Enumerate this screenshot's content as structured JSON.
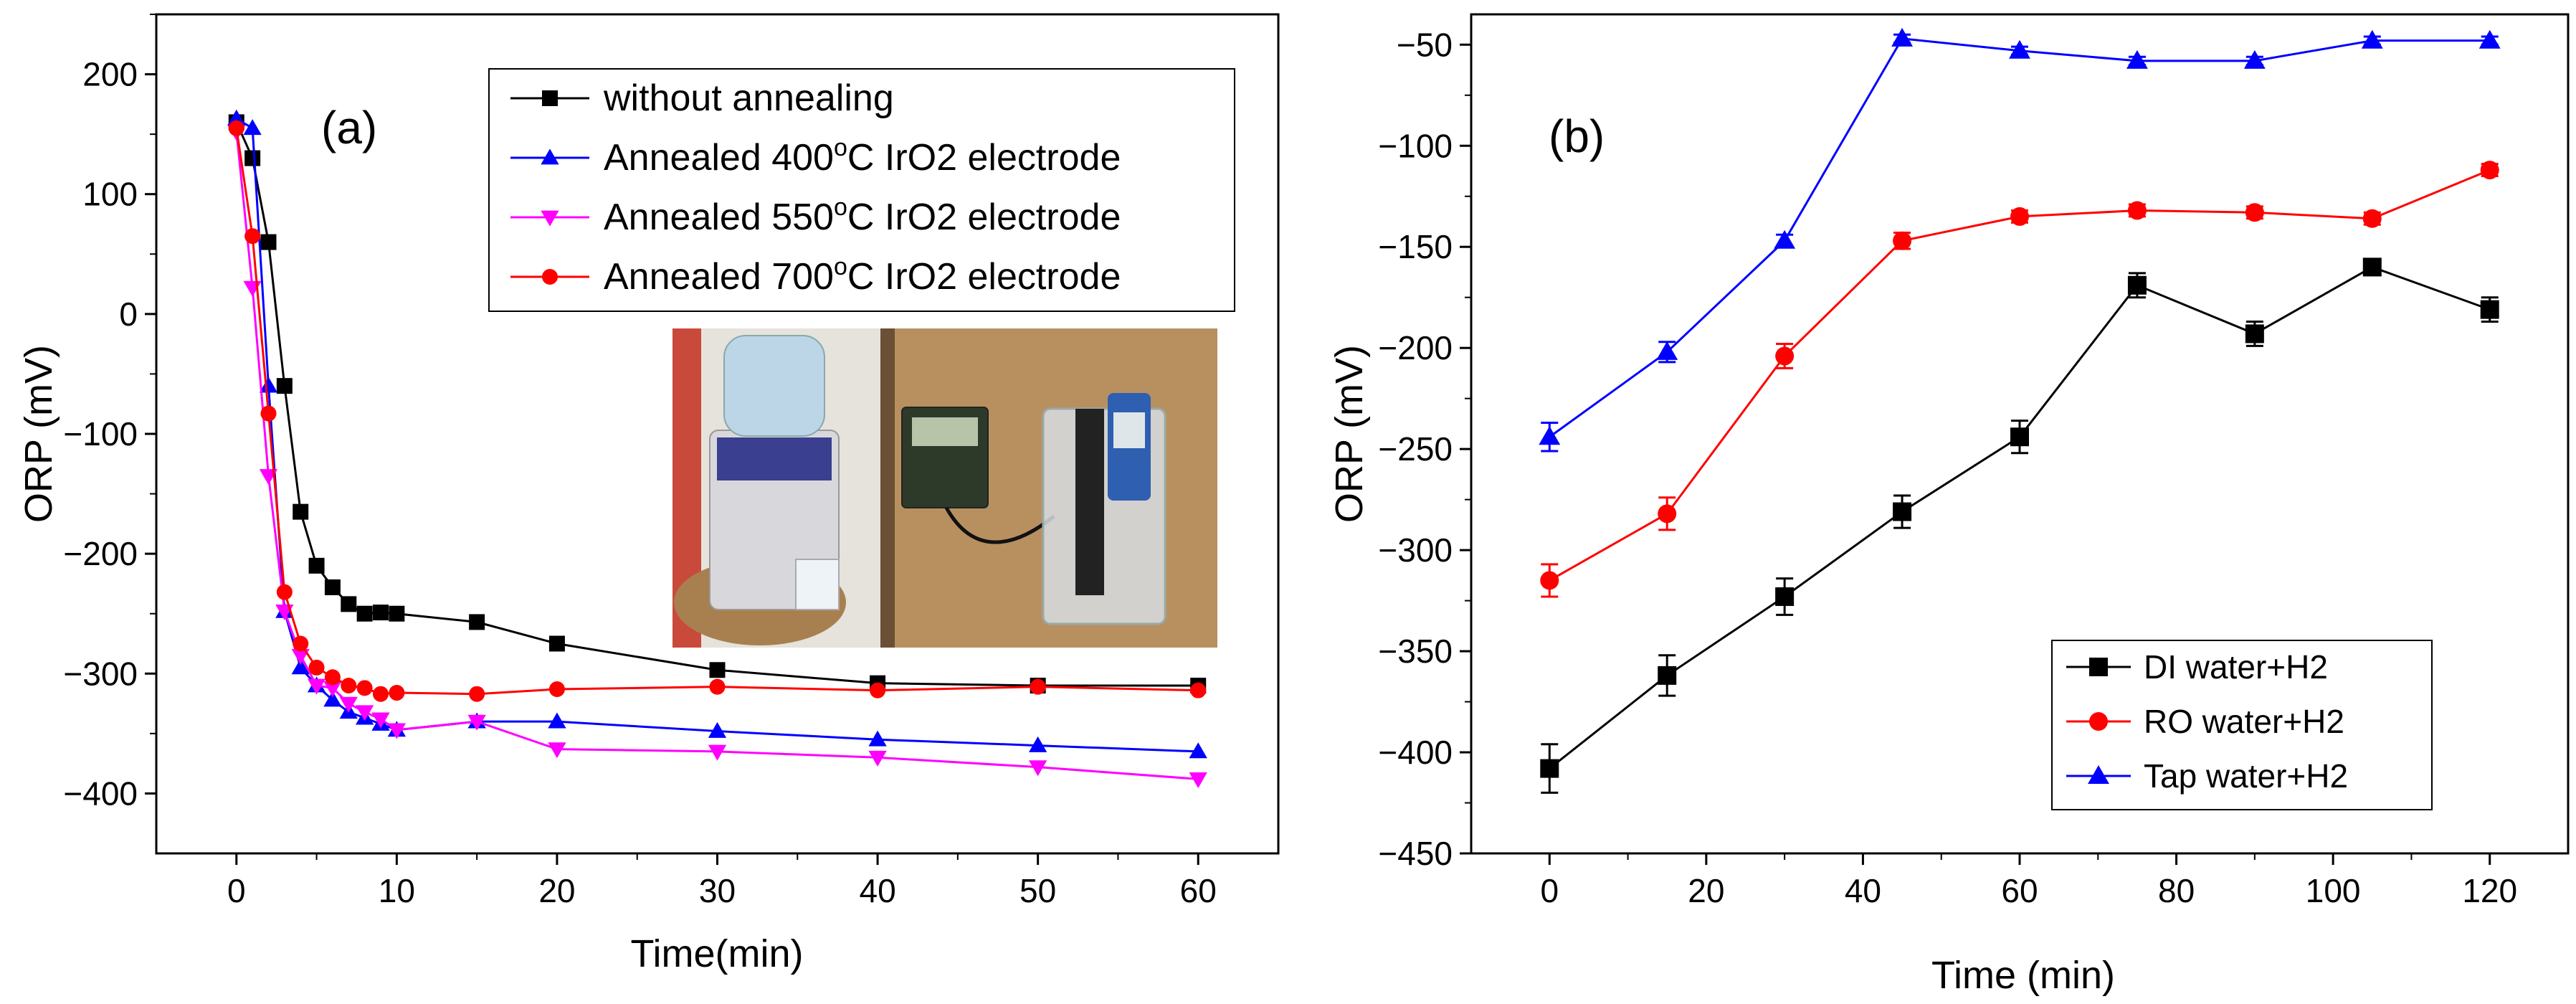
{
  "chart_data": [
    {
      "type": "line",
      "panel_label": "(a)",
      "xlabel": "Time(min)",
      "ylabel": "ORP (mV)",
      "xlim": [
        -5,
        65
      ],
      "ylim": [
        -450,
        250
      ],
      "xticks": [
        0,
        10,
        20,
        30,
        40,
        50,
        60
      ],
      "yticks": [
        -400,
        -300,
        -200,
        -100,
        0,
        100,
        200
      ],
      "legend_position": "top-right",
      "series": [
        {
          "name": "without annealing",
          "color": "#000000",
          "marker": "square",
          "x": [
            0,
            1,
            2,
            3,
            4,
            5,
            6,
            7,
            8,
            9,
            10,
            15,
            20,
            30,
            40,
            50,
            60
          ],
          "y": [
            160,
            130,
            60,
            -60,
            -165,
            -210,
            -228,
            -242,
            -250,
            -249,
            -250,
            -257,
            -275,
            -297,
            -308,
            -310,
            -310
          ]
        },
        {
          "name": "Annealed 400°C IrO2 electrode",
          "color": "#0000FF",
          "marker": "triangle-up",
          "x": [
            0,
            1,
            2,
            3,
            4,
            5,
            6,
            7,
            8,
            9,
            10,
            15,
            20,
            30,
            40,
            50,
            60
          ],
          "y": [
            163,
            155,
            -60,
            -248,
            -295,
            -310,
            -322,
            -332,
            -337,
            -342,
            -347,
            -340,
            -340,
            -348,
            -355,
            -360,
            -365
          ]
        },
        {
          "name": "Annealed 550°C IrO2 electrode",
          "color": "#FF00FF",
          "marker": "triangle-down",
          "x": [
            0,
            1,
            2,
            3,
            4,
            5,
            6,
            7,
            8,
            9,
            10,
            15,
            20,
            30,
            40,
            50,
            60
          ],
          "y": [
            152,
            22,
            -135,
            -248,
            -285,
            -310,
            -312,
            -325,
            -332,
            -338,
            -347,
            -340,
            -363,
            -365,
            -370,
            -378,
            -388
          ]
        },
        {
          "name": "Annealed 700°C IrO2 electrode",
          "color": "#FF0000",
          "marker": "circle",
          "x": [
            0,
            1,
            2,
            3,
            4,
            5,
            6,
            7,
            8,
            9,
            10,
            15,
            20,
            30,
            40,
            50,
            60
          ],
          "y": [
            155,
            65,
            -83,
            -232,
            -275,
            -295,
            -303,
            -310,
            -312,
            -317,
            -316,
            -317,
            -313,
            -311,
            -314,
            -311,
            -314
          ]
        }
      ],
      "legend_entries": [
        {
          "prefix": "without annealing",
          "sup": "",
          "suffix": ""
        },
        {
          "prefix": "Annealed 400",
          "sup": "o",
          "suffix": "C IrO2 electrode"
        },
        {
          "prefix": "Annealed 550",
          "sup": "o",
          "suffix": "C IrO2 electrode"
        },
        {
          "prefix": "Annealed 700",
          "sup": "o",
          "suffix": "C IrO2 electrode"
        }
      ],
      "inset": "photo of a water dispenser and ORP meter measuring a water sample"
    },
    {
      "type": "line",
      "panel_label": "(b)",
      "xlabel": "Time (min)",
      "ylabel": "ORP (mV)",
      "xlim": [
        -10,
        130
      ],
      "ylim": [
        -450,
        -35
      ],
      "xticks": [
        0,
        20,
        40,
        60,
        80,
        100,
        120
      ],
      "yticks": [
        -450,
        -400,
        -350,
        -300,
        -250,
        -200,
        -150,
        -100,
        -50
      ],
      "legend_position": "bottom-right",
      "error_bars": true,
      "series": [
        {
          "name": "DI water+H2",
          "color": "#000000",
          "marker": "square",
          "x": [
            0,
            15,
            30,
            45,
            60,
            75,
            90,
            105,
            120
          ],
          "y": [
            -408,
            -362,
            -323,
            -281,
            -244,
            -169,
            -193,
            -160,
            -181
          ],
          "err": [
            12,
            10,
            9,
            8,
            8,
            6,
            6,
            4,
            6
          ]
        },
        {
          "name": "RO water+H2",
          "color": "#FF0000",
          "marker": "circle",
          "x": [
            0,
            15,
            30,
            45,
            60,
            75,
            90,
            105,
            120
          ],
          "y": [
            -315,
            -282,
            -204,
            -147,
            -135,
            -132,
            -133,
            -136,
            -112
          ],
          "err": [
            8,
            8,
            6,
            4,
            3,
            3,
            3,
            3,
            3
          ]
        },
        {
          "name": "Tap water+H2",
          "color": "#0000FF",
          "marker": "triangle-up",
          "x": [
            0,
            15,
            30,
            45,
            60,
            75,
            90,
            105,
            120
          ],
          "y": [
            -244,
            -202,
            -147,
            -47,
            -53,
            -58,
            -58,
            -48,
            -48
          ],
          "err": [
            7,
            5,
            3,
            2,
            2,
            2,
            2,
            2,
            2
          ]
        }
      ]
    }
  ]
}
